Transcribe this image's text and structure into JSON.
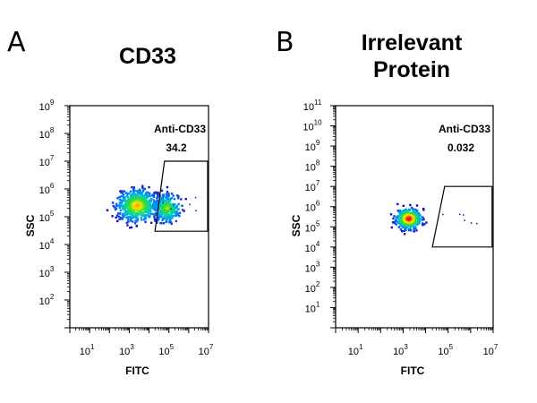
{
  "chart_data": [
    {
      "type": "scatter",
      "panel_letter": "A",
      "title": "CD33",
      "xlabel": "FITC",
      "ylabel": "SSC",
      "x_scale": "log",
      "y_scale": "log",
      "xlim": [
        1,
        10000000
      ],
      "ylim": [
        10,
        1000000000
      ],
      "x_ticks": [
        {
          "base": "10",
          "exp": "1",
          "value": 10
        },
        {
          "base": "10",
          "exp": "3",
          "value": 1000
        },
        {
          "base": "10",
          "exp": "5",
          "value": 100000
        },
        {
          "base": "10",
          "exp": "7",
          "value": 10000000
        }
      ],
      "y_ticks": [
        {
          "base": "10",
          "exp": "2",
          "value": 100
        },
        {
          "base": "10",
          "exp": "3",
          "value": 1000
        },
        {
          "base": "10",
          "exp": "4",
          "value": 10000
        },
        {
          "base": "10",
          "exp": "5",
          "value": 100000
        },
        {
          "base": "10",
          "exp": "6",
          "value": 1000000
        },
        {
          "base": "10",
          "exp": "7",
          "value": 10000000
        },
        {
          "base": "10",
          "exp": "8",
          "value": 100000000
        },
        {
          "base": "10",
          "exp": "9",
          "value": 1000000000
        }
      ],
      "gate": {
        "name": "Anti-CD33",
        "value": "34.2",
        "polygon": [
          [
            60000,
            10000000
          ],
          [
            9000000,
            10000000
          ],
          [
            9000000,
            30000
          ],
          [
            20000,
            30000
          ]
        ]
      },
      "populations": [
        {
          "x_center": 2500,
          "y_center": 250000,
          "x_spread_decades": 0.5,
          "y_spread_decades": 0.28,
          "weight": 0.66
        },
        {
          "x_center": 80000,
          "y_center": 200000,
          "x_spread_decades": 0.35,
          "y_spread_decades": 0.25,
          "weight": 0.34
        }
      ]
    },
    {
      "type": "scatter",
      "panel_letter": "B",
      "title": "Irrelevant Protein",
      "xlabel": "FITC",
      "ylabel": "SSC",
      "x_scale": "log",
      "y_scale": "log",
      "xlim": [
        1,
        10000000
      ],
      "ylim": [
        1,
        100000000000
      ],
      "x_ticks": [
        {
          "base": "10",
          "exp": "1",
          "value": 10
        },
        {
          "base": "10",
          "exp": "3",
          "value": 1000
        },
        {
          "base": "10",
          "exp": "5",
          "value": 100000
        },
        {
          "base": "10",
          "exp": "7",
          "value": 10000000
        }
      ],
      "y_ticks": [
        {
          "base": "10",
          "exp": "1",
          "value": 10
        },
        {
          "base": "10",
          "exp": "2",
          "value": 100
        },
        {
          "base": "10",
          "exp": "3",
          "value": 1000
        },
        {
          "base": "10",
          "exp": "4",
          "value": 10000
        },
        {
          "base": "10",
          "exp": "5",
          "value": 100000
        },
        {
          "base": "10",
          "exp": "6",
          "value": 1000000
        },
        {
          "base": "10",
          "exp": "7",
          "value": 10000000
        },
        {
          "base": "10",
          "exp": "8",
          "value": 100000000
        },
        {
          "base": "10",
          "exp": "9",
          "value": 1000000000
        },
        {
          "base": "10",
          "exp": "10",
          "value": 10000000000
        },
        {
          "base": "10",
          "exp": "11",
          "value": 100000000000
        }
      ],
      "gate": {
        "name": "Anti-CD33",
        "value": "0.032",
        "polygon": [
          [
            70000,
            10000000
          ],
          [
            9000000,
            10000000
          ],
          [
            9000000,
            10000
          ],
          [
            20000,
            10000
          ]
        ]
      },
      "populations": [
        {
          "x_center": 1800,
          "y_center": 250000,
          "x_spread_decades": 0.28,
          "y_spread_decades": 0.25,
          "weight": 1.0
        }
      ]
    }
  ]
}
